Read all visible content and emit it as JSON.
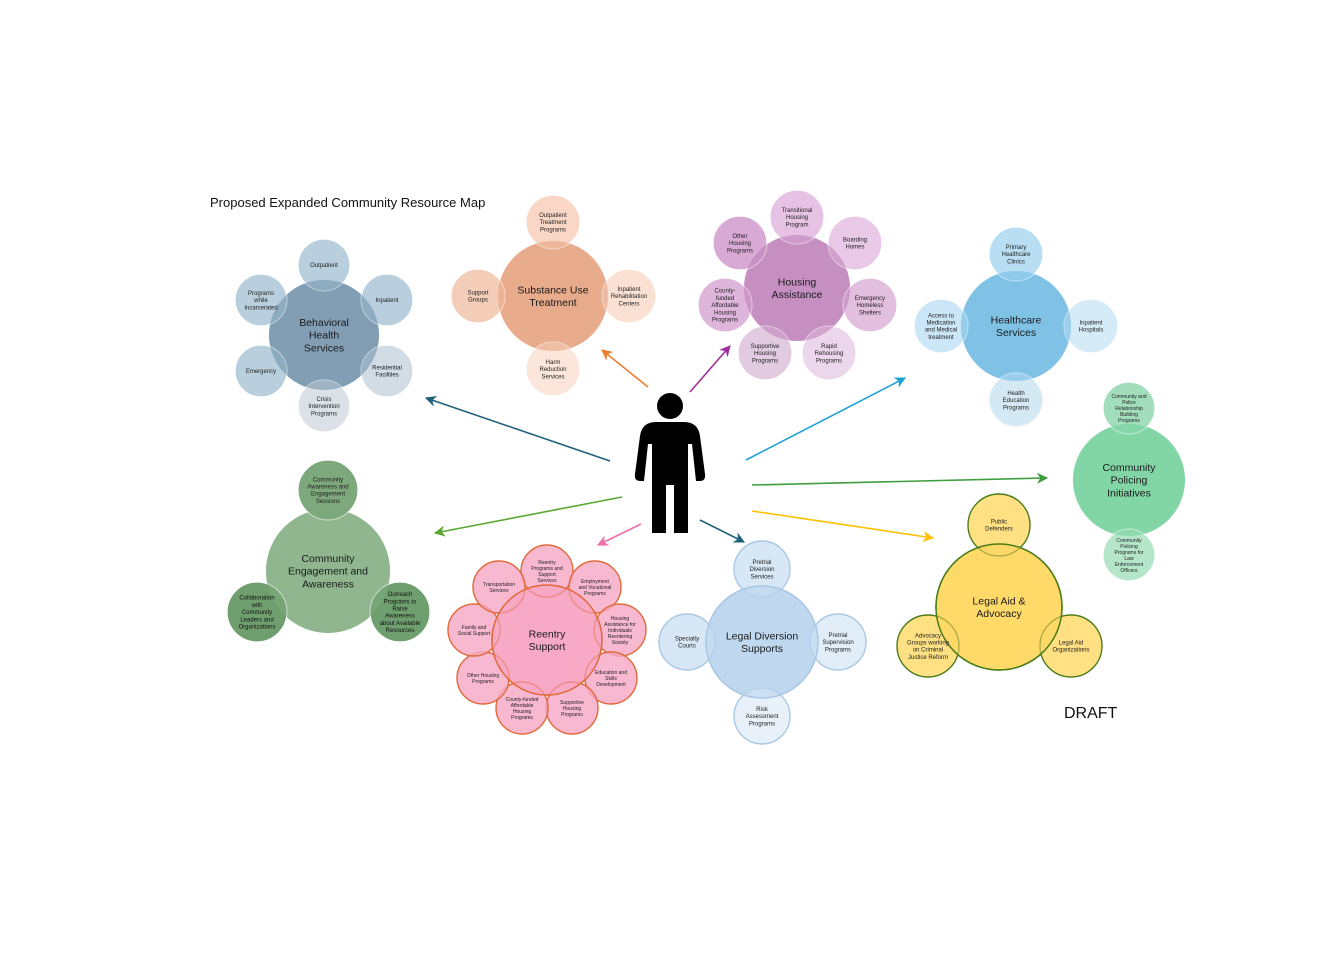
{
  "title": "Proposed Expanded Community Resource Map",
  "draft_label": "DRAFT",
  "clusters": [
    {
      "id": "behavioral",
      "label": "Behavioral\nHealth\nServices",
      "color": "#7e9cb2",
      "satellites": [
        "Outpatient",
        "Inpatient",
        "Residential\nFacilities",
        "Crisis\nIntervention\nPrograms",
        "Emergency",
        "Programs\nwhile\nIncarcerated"
      ]
    },
    {
      "id": "substance",
      "label": "Substance Use\nTreatment",
      "color": "#e8a989",
      "satellites": [
        "Outpatient\nTreatment\nPrograms",
        "Inpatient\nRehabilitation\nCenters",
        "Harm\nReduction\nServices",
        "Support\nGroups"
      ]
    },
    {
      "id": "housing",
      "label": "Housing\nAssistance",
      "color": "#c48dc0",
      "satellites": [
        "Transitional\nHousing\nProgram",
        "Boarding\nHomes",
        "Emergency\nHomeless\nShelters",
        "Rapid\nRehousing\nPrograms",
        "Supportive\nHousing\nPrograms",
        "County-\nfunded\nAffordable\nHousing\nPrograms",
        "Other\nHousing\nPrograms"
      ]
    },
    {
      "id": "healthcare",
      "label": "Healthcare\nServices",
      "color": "#7cc1e6",
      "satellites": [
        "Primary\nHealthcare\nClinics",
        "Inpatient\nHospitals",
        "Health\nEducation\nPrograms",
        "Access to\nMedication\nand Medical\ntreatment"
      ]
    },
    {
      "id": "policing",
      "label": "Community\nPolicing\nInitiatives",
      "color": "#7fd6a4",
      "satellites": [
        "Community and\nPolice\nRelationship\nBuilding\nPrograms",
        "Community\nPolicing\nPrograms for\nLaw\nEnforcement\nOfficers"
      ]
    },
    {
      "id": "community",
      "label": "Community\nEngagement and\nAwareness",
      "color": "#8db58d",
      "satellites": [
        "Community\nAwareness and\nEngagement\nSessions",
        "Outreach\nPrograms to\nRaise\nAwareness\nabout Available\nResources",
        "Collaboration\nwith\nCommunity\nLeaders and\nOrganizations"
      ]
    },
    {
      "id": "reentry",
      "label": "Reentry\nSupport",
      "color": "#f7a8c4",
      "satellites": [
        "Reentry\nPrograms and\nSupport\nServices",
        "Employment\nand Vocational\nPrograms",
        "Housing\nAssistance for\nIndividuals\nReentering\nSociety",
        "Education and\nSkills\nDevelopment",
        "Supportive\nHousing\nPrograms",
        "County-funded\nAffordable\nHousing\nPrograms",
        "Other Housing\nPrograms",
        "Family and\nSocial Support",
        "Transportation\nServices"
      ]
    },
    {
      "id": "legaldiv",
      "label": "Legal Diversion\nSupports",
      "color": "#bdd7ee",
      "satellites": [
        "Pretrial\nDiversion\nServices",
        "Pretrial\nSupervision\nPrograms",
        "Risk\nAssessment\nPrograms",
        "Specialty\nCourts"
      ]
    },
    {
      "id": "legalaid",
      "label": "Legal Aid &\nAdvocacy",
      "color": "#ffd966",
      "satellites": [
        "Public\nDefenders",
        "Legal Aid\nOrganizations",
        "Advocacy\nGroups working\non Criminal\nJustice Reform"
      ]
    }
  ],
  "arrow_colors": {
    "behavioral": "#1f5f7a",
    "substance": "#ed7d31",
    "housing": "#a0309a",
    "healthcare": "#1ba1d6",
    "policing": "#3f9f3f",
    "community": "#5aa832",
    "reentry": "#f06ea7",
    "legaldiv": "#1f5f7a",
    "legalaid": "#ffc000"
  }
}
